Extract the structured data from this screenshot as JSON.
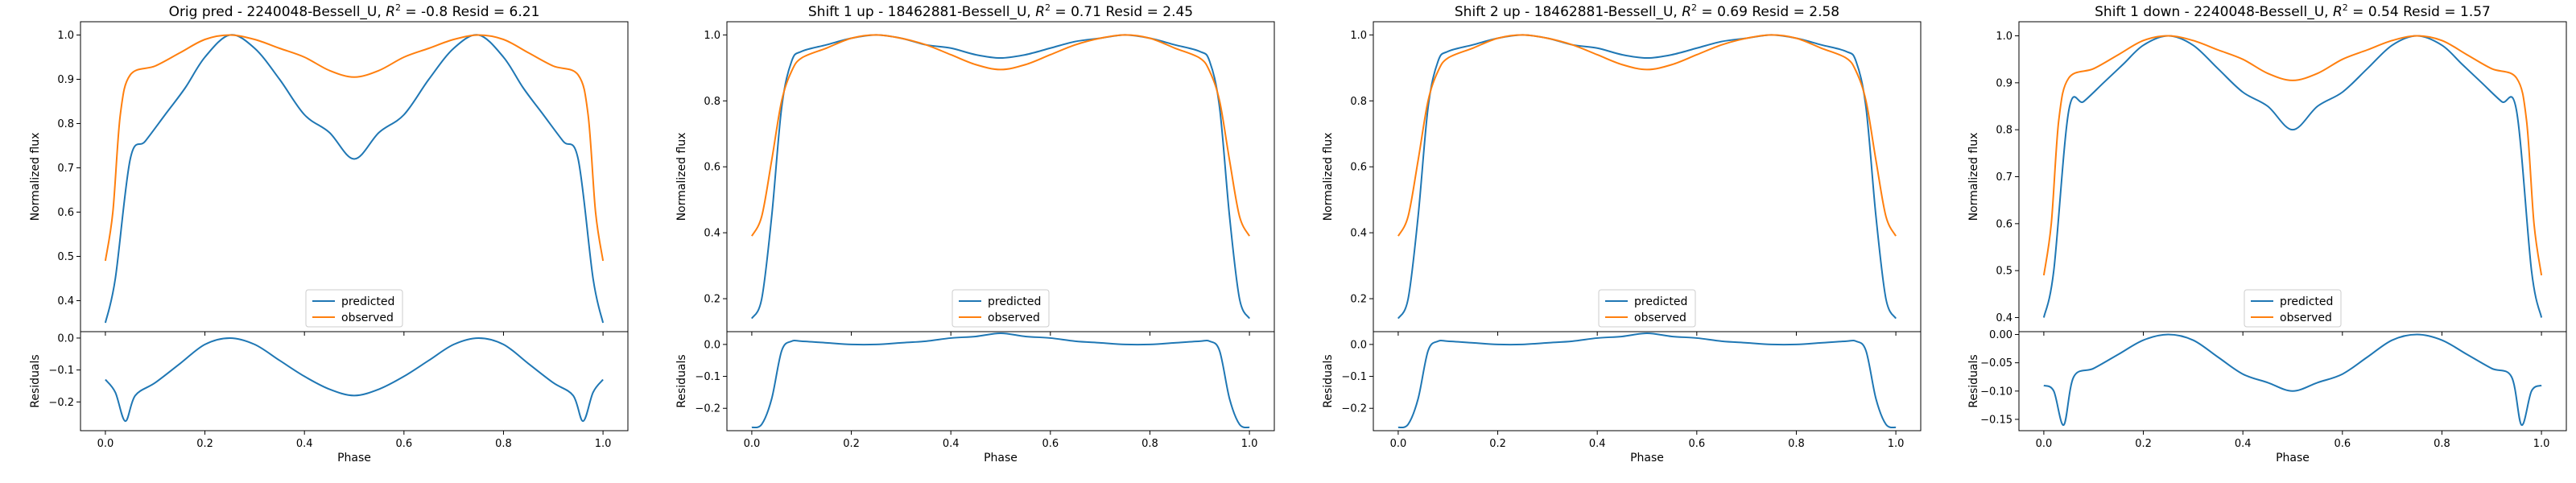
{
  "colors": {
    "predicted": "#1f77b4",
    "observed": "#ff7f0e"
  },
  "chart_data": [
    {
      "type": "line",
      "title_main": "Orig pred - 2240048-Bessell_U, ",
      "title_r2": "R",
      "title_r2_sup": "2",
      "title_rest": " = -0.8 Resid = 6.21",
      "top": {
        "ylabel": "Normalized flux",
        "ylim": [
          0.33,
          1.03
        ],
        "yticks": [
          0.4,
          0.5,
          0.6,
          0.7,
          0.8,
          0.9,
          1.0
        ],
        "ytick_labels": [
          "0.4",
          "0.5",
          "0.6",
          "0.7",
          "0.8",
          "0.9",
          "1.0"
        ],
        "series": [
          {
            "name": "predicted",
            "color": "#1f77b4",
            "x": [
              0.0,
              0.02,
              0.05,
              0.08,
              0.12,
              0.16,
              0.2,
              0.25,
              0.3,
              0.35,
              0.4,
              0.45,
              0.5,
              0.55,
              0.6,
              0.65,
              0.7,
              0.75,
              0.8,
              0.84,
              0.88,
              0.92,
              0.95,
              0.98,
              1.0
            ],
            "y": [
              0.35,
              0.45,
              0.72,
              0.76,
              0.82,
              0.88,
              0.95,
              1.0,
              0.97,
              0.9,
              0.82,
              0.78,
              0.72,
              0.78,
              0.82,
              0.9,
              0.97,
              1.0,
              0.95,
              0.88,
              0.82,
              0.76,
              0.72,
              0.45,
              0.35
            ]
          },
          {
            "name": "observed",
            "color": "#ff7f0e",
            "x": [
              0.0,
              0.015,
              0.03,
              0.05,
              0.1,
              0.15,
              0.2,
              0.25,
              0.3,
              0.35,
              0.4,
              0.45,
              0.5,
              0.55,
              0.6,
              0.65,
              0.7,
              0.75,
              0.8,
              0.85,
              0.9,
              0.95,
              0.97,
              0.985,
              1.0
            ],
            "y": [
              0.49,
              0.6,
              0.82,
              0.91,
              0.93,
              0.96,
              0.99,
              1.0,
              0.99,
              0.97,
              0.95,
              0.92,
              0.905,
              0.92,
              0.95,
              0.97,
              0.99,
              1.0,
              0.99,
              0.96,
              0.93,
              0.91,
              0.82,
              0.6,
              0.49
            ]
          }
        ],
        "legend": "lower center"
      },
      "bottom": {
        "ylabel": "Residuals",
        "ylim": [
          -0.29,
          0.02
        ],
        "yticks": [
          0.0,
          -0.1,
          -0.2
        ],
        "ytick_labels": [
          "0.0",
          "−0.1",
          "−0.2"
        ],
        "series": [
          {
            "name": "residual",
            "color": "#1f77b4",
            "x": [
              0.0,
              0.02,
              0.04,
              0.06,
              0.1,
              0.15,
              0.2,
              0.25,
              0.3,
              0.35,
              0.4,
              0.45,
              0.5,
              0.55,
              0.6,
              0.65,
              0.7,
              0.75,
              0.8,
              0.85,
              0.9,
              0.94,
              0.96,
              0.98,
              1.0
            ],
            "y": [
              -0.13,
              -0.17,
              -0.26,
              -0.18,
              -0.14,
              -0.08,
              -0.02,
              0.0,
              -0.02,
              -0.07,
              -0.12,
              -0.16,
              -0.18,
              -0.16,
              -0.12,
              -0.07,
              -0.02,
              0.0,
              -0.02,
              -0.08,
              -0.14,
              -0.18,
              -0.26,
              -0.17,
              -0.13
            ]
          }
        ],
        "xlabel": "Phase"
      },
      "xlim": [
        -0.05,
        1.05
      ],
      "xticks": [
        0.0,
        0.2,
        0.4,
        0.6,
        0.8,
        1.0
      ],
      "xtick_labels": [
        "0.0",
        "0.2",
        "0.4",
        "0.6",
        "0.8",
        "1.0"
      ]
    },
    {
      "type": "line",
      "title_main": "Shift 1 up - 18462881-Bessell_U, ",
      "title_r2": "R",
      "title_r2_sup": "2",
      "title_rest": " = 0.71 Resid = 2.45",
      "top": {
        "ylabel": "Normalized flux",
        "ylim": [
          0.1,
          1.04
        ],
        "yticks": [
          0.2,
          0.4,
          0.6,
          0.8,
          1.0
        ],
        "ytick_labels": [
          "0.2",
          "0.4",
          "0.6",
          "0.8",
          "1.0"
        ],
        "series": [
          {
            "name": "predicted",
            "color": "#1f77b4",
            "x": [
              0.0,
              0.02,
              0.04,
              0.06,
              0.08,
              0.1,
              0.15,
              0.2,
              0.25,
              0.3,
              0.35,
              0.4,
              0.45,
              0.5,
              0.55,
              0.6,
              0.65,
              0.7,
              0.75,
              0.8,
              0.85,
              0.9,
              0.92,
              0.94,
              0.96,
              0.98,
              1.0
            ],
            "y": [
              0.14,
              0.2,
              0.45,
              0.78,
              0.92,
              0.95,
              0.97,
              0.99,
              1.0,
              0.99,
              0.97,
              0.96,
              0.94,
              0.93,
              0.94,
              0.96,
              0.98,
              0.99,
              1.0,
              0.99,
              0.97,
              0.95,
              0.92,
              0.78,
              0.45,
              0.2,
              0.14
            ]
          },
          {
            "name": "observed",
            "color": "#ff7f0e",
            "x": [
              0.0,
              0.02,
              0.04,
              0.06,
              0.08,
              0.1,
              0.15,
              0.2,
              0.25,
              0.3,
              0.35,
              0.4,
              0.45,
              0.5,
              0.55,
              0.6,
              0.65,
              0.7,
              0.75,
              0.8,
              0.85,
              0.9,
              0.92,
              0.94,
              0.96,
              0.98,
              1.0
            ],
            "y": [
              0.39,
              0.45,
              0.62,
              0.8,
              0.89,
              0.93,
              0.96,
              0.99,
              1.0,
              0.99,
              0.97,
              0.94,
              0.91,
              0.895,
              0.91,
              0.94,
              0.97,
              0.99,
              1.0,
              0.99,
              0.96,
              0.93,
              0.89,
              0.8,
              0.62,
              0.45,
              0.39
            ]
          }
        ],
        "legend": "lower center"
      },
      "bottom": {
        "ylabel": "Residuals",
        "ylim": [
          -0.27,
          0.04
        ],
        "yticks": [
          0.0,
          -0.1,
          -0.2
        ],
        "ytick_labels": [
          "0.0",
          "−0.1",
          "−0.2"
        ],
        "series": [
          {
            "name": "residual",
            "color": "#1f77b4",
            "x": [
              0.0,
              0.02,
              0.04,
              0.06,
              0.08,
              0.1,
              0.15,
              0.2,
              0.25,
              0.3,
              0.35,
              0.4,
              0.45,
              0.5,
              0.55,
              0.6,
              0.65,
              0.7,
              0.75,
              0.8,
              0.85,
              0.9,
              0.92,
              0.94,
              0.96,
              0.98,
              1.0
            ],
            "y": [
              -0.26,
              -0.25,
              -0.17,
              -0.02,
              0.01,
              0.01,
              0.005,
              0.0,
              0.0,
              0.005,
              0.01,
              0.02,
              0.025,
              0.035,
              0.025,
              0.02,
              0.01,
              0.005,
              0.0,
              0.0,
              0.005,
              0.01,
              0.01,
              -0.02,
              -0.17,
              -0.25,
              -0.26
            ]
          }
        ],
        "xlabel": "Phase"
      },
      "xlim": [
        -0.05,
        1.05
      ],
      "xticks": [
        0.0,
        0.2,
        0.4,
        0.6,
        0.8,
        1.0
      ],
      "xtick_labels": [
        "0.0",
        "0.2",
        "0.4",
        "0.6",
        "0.8",
        "1.0"
      ]
    },
    {
      "type": "line",
      "title_main": "Shift 2 up - 18462881-Bessell_U, ",
      "title_r2": "R",
      "title_r2_sup": "2",
      "title_rest": " = 0.69 Resid = 2.58",
      "top": {
        "ylabel": "Normalized flux",
        "ylim": [
          0.1,
          1.04
        ],
        "yticks": [
          0.2,
          0.4,
          0.6,
          0.8,
          1.0
        ],
        "ytick_labels": [
          "0.2",
          "0.4",
          "0.6",
          "0.8",
          "1.0"
        ],
        "series": [
          {
            "name": "predicted",
            "color": "#1f77b4",
            "x": [
              0.0,
              0.02,
              0.04,
              0.06,
              0.08,
              0.1,
              0.15,
              0.2,
              0.25,
              0.3,
              0.35,
              0.4,
              0.45,
              0.5,
              0.55,
              0.6,
              0.65,
              0.7,
              0.75,
              0.8,
              0.85,
              0.9,
              0.92,
              0.94,
              0.96,
              0.98,
              1.0
            ],
            "y": [
              0.14,
              0.2,
              0.45,
              0.78,
              0.92,
              0.95,
              0.97,
              0.99,
              1.0,
              0.99,
              0.97,
              0.96,
              0.94,
              0.93,
              0.94,
              0.96,
              0.98,
              0.99,
              1.0,
              0.99,
              0.97,
              0.95,
              0.92,
              0.78,
              0.45,
              0.2,
              0.14
            ]
          },
          {
            "name": "observed",
            "color": "#ff7f0e",
            "x": [
              0.0,
              0.02,
              0.04,
              0.06,
              0.08,
              0.1,
              0.15,
              0.2,
              0.25,
              0.3,
              0.35,
              0.4,
              0.45,
              0.5,
              0.55,
              0.6,
              0.65,
              0.7,
              0.75,
              0.8,
              0.85,
              0.9,
              0.92,
              0.94,
              0.96,
              0.98,
              1.0
            ],
            "y": [
              0.39,
              0.45,
              0.62,
              0.8,
              0.89,
              0.93,
              0.96,
              0.99,
              1.0,
              0.99,
              0.97,
              0.94,
              0.91,
              0.895,
              0.91,
              0.94,
              0.97,
              0.99,
              1.0,
              0.99,
              0.96,
              0.93,
              0.89,
              0.8,
              0.62,
              0.45,
              0.39
            ]
          }
        ],
        "legend": "lower center"
      },
      "bottom": {
        "ylabel": "Residuals",
        "ylim": [
          -0.27,
          0.04
        ],
        "yticks": [
          0.0,
          -0.1,
          -0.2
        ],
        "ytick_labels": [
          "0.0",
          "−0.1",
          "−0.2"
        ],
        "series": [
          {
            "name": "residual",
            "color": "#1f77b4",
            "x": [
              0.0,
              0.02,
              0.04,
              0.06,
              0.08,
              0.1,
              0.15,
              0.2,
              0.25,
              0.3,
              0.35,
              0.4,
              0.45,
              0.5,
              0.55,
              0.6,
              0.65,
              0.7,
              0.75,
              0.8,
              0.85,
              0.9,
              0.92,
              0.94,
              0.96,
              0.98,
              1.0
            ],
            "y": [
              -0.26,
              -0.25,
              -0.17,
              -0.02,
              0.01,
              0.01,
              0.005,
              0.0,
              0.0,
              0.005,
              0.01,
              0.02,
              0.025,
              0.035,
              0.025,
              0.02,
              0.01,
              0.005,
              0.0,
              0.0,
              0.005,
              0.01,
              0.01,
              -0.02,
              -0.17,
              -0.25,
              -0.26
            ]
          }
        ],
        "xlabel": "Phase"
      },
      "xlim": [
        -0.05,
        1.05
      ],
      "xticks": [
        0.0,
        0.2,
        0.4,
        0.6,
        0.8,
        1.0
      ],
      "xtick_labels": [
        "0.0",
        "0.2",
        "0.4",
        "0.6",
        "0.8",
        "1.0"
      ]
    },
    {
      "type": "line",
      "title_main": "Shift 1 down - 2240048-Bessell_U, ",
      "title_r2": "R",
      "title_r2_sup": "2",
      "title_rest": " = 0.54 Resid = 1.57",
      "top": {
        "ylabel": "Normalized flux",
        "ylim": [
          0.37,
          1.03
        ],
        "yticks": [
          0.4,
          0.5,
          0.6,
          0.7,
          0.8,
          0.9,
          1.0
        ],
        "ytick_labels": [
          "0.4",
          "0.5",
          "0.6",
          "0.7",
          "0.8",
          "0.9",
          "1.0"
        ],
        "series": [
          {
            "name": "predicted",
            "color": "#1f77b4",
            "x": [
              0.0,
              0.02,
              0.05,
              0.08,
              0.12,
              0.16,
              0.2,
              0.25,
              0.3,
              0.35,
              0.4,
              0.45,
              0.5,
              0.55,
              0.6,
              0.65,
              0.7,
              0.75,
              0.8,
              0.84,
              0.88,
              0.92,
              0.95,
              0.98,
              1.0
            ],
            "y": [
              0.4,
              0.5,
              0.84,
              0.86,
              0.9,
              0.94,
              0.98,
              1.0,
              0.98,
              0.93,
              0.88,
              0.85,
              0.8,
              0.85,
              0.88,
              0.93,
              0.98,
              1.0,
              0.98,
              0.94,
              0.9,
              0.86,
              0.84,
              0.5,
              0.4
            ]
          },
          {
            "name": "observed",
            "color": "#ff7f0e",
            "x": [
              0.0,
              0.015,
              0.03,
              0.05,
              0.1,
              0.15,
              0.2,
              0.25,
              0.3,
              0.35,
              0.4,
              0.45,
              0.5,
              0.55,
              0.6,
              0.65,
              0.7,
              0.75,
              0.8,
              0.85,
              0.9,
              0.95,
              0.97,
              0.985,
              1.0
            ],
            "y": [
              0.49,
              0.6,
              0.82,
              0.91,
              0.93,
              0.96,
              0.99,
              1.0,
              0.99,
              0.97,
              0.95,
              0.92,
              0.905,
              0.92,
              0.95,
              0.97,
              0.99,
              1.0,
              0.99,
              0.96,
              0.93,
              0.91,
              0.82,
              0.6,
              0.49
            ]
          }
        ],
        "legend": "lower center"
      },
      "bottom": {
        "ylabel": "Residuals",
        "ylim": [
          -0.17,
          0.005
        ],
        "yticks": [
          0.0,
          -0.05,
          -0.1,
          -0.15
        ],
        "ytick_labels": [
          "0.00",
          "−0.05",
          "−0.10",
          "−0.15"
        ],
        "series": [
          {
            "name": "residual",
            "color": "#1f77b4",
            "x": [
              0.0,
              0.02,
              0.04,
              0.06,
              0.1,
              0.15,
              0.2,
              0.25,
              0.3,
              0.35,
              0.4,
              0.45,
              0.5,
              0.55,
              0.6,
              0.65,
              0.7,
              0.75,
              0.8,
              0.85,
              0.9,
              0.94,
              0.96,
              0.98,
              1.0
            ],
            "y": [
              -0.09,
              -0.1,
              -0.16,
              -0.075,
              -0.06,
              -0.035,
              -0.01,
              0.0,
              -0.01,
              -0.04,
              -0.07,
              -0.085,
              -0.1,
              -0.085,
              -0.07,
              -0.04,
              -0.01,
              0.0,
              -0.01,
              -0.035,
              -0.06,
              -0.075,
              -0.16,
              -0.1,
              -0.09
            ]
          }
        ],
        "xlabel": "Phase"
      },
      "xlim": [
        -0.05,
        1.05
      ],
      "xticks": [
        0.0,
        0.2,
        0.4,
        0.6,
        0.8,
        1.0
      ],
      "xtick_labels": [
        "0.0",
        "0.2",
        "0.4",
        "0.6",
        "0.8",
        "1.0"
      ]
    }
  ]
}
